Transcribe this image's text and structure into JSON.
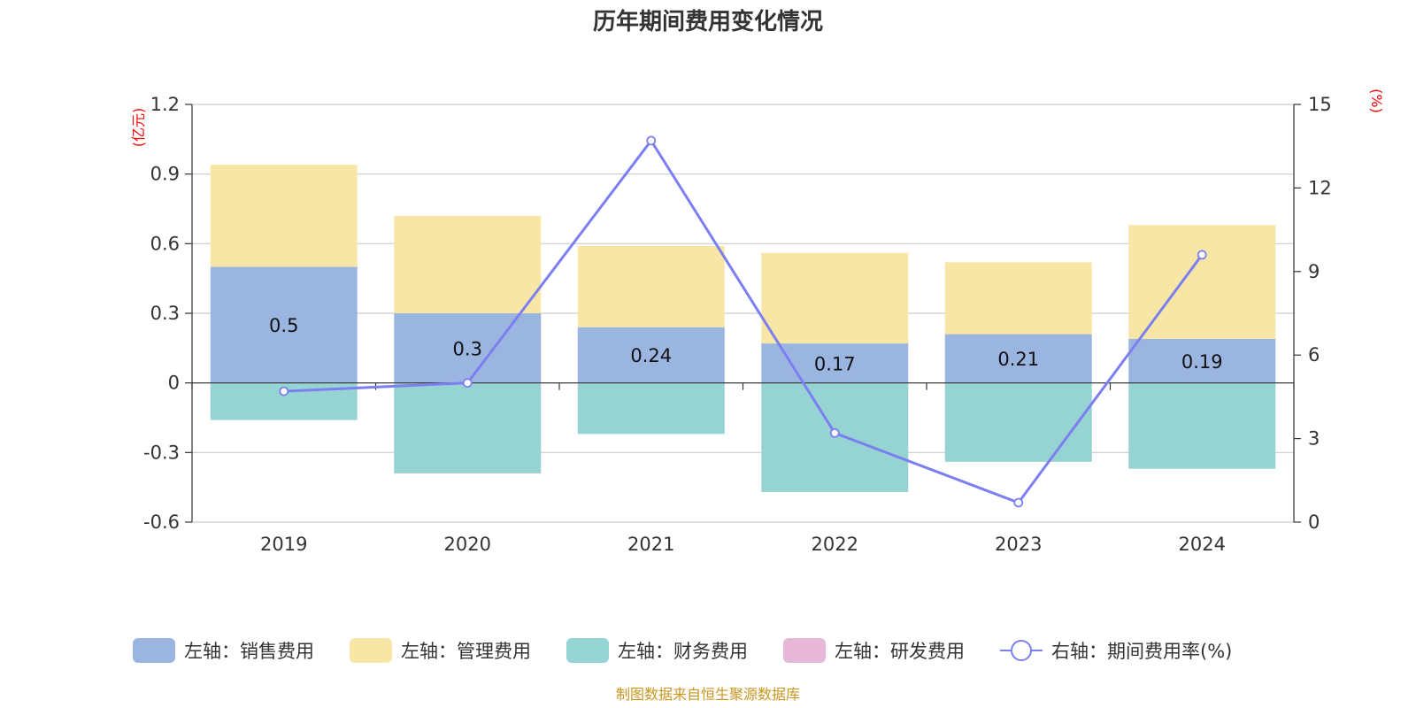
{
  "title": "历年期间费用变化情况",
  "source": "制图数据来自恒生聚源数据库",
  "colors": {
    "sales": "#9bb5e1",
    "admin": "#f8e6a6",
    "finance": "#96d3d3",
    "rnd": "#e8b8d9",
    "rate_line": "#7b7ff0",
    "unit_text": "#ff0000",
    "source_text": "#c8961e"
  },
  "chart_data": {
    "type": "bar",
    "stacked": true,
    "categories": [
      "2019",
      "2020",
      "2021",
      "2022",
      "2023",
      "2024"
    ],
    "left_axis": {
      "unit": "(亿元)",
      "ylim": [
        -0.6,
        1.2
      ],
      "ticks": [
        "-0.6",
        "-0.3",
        "0",
        "0.3",
        "0.6",
        "0.9",
        "1.2"
      ]
    },
    "right_axis": {
      "unit": "(%)",
      "ylim": [
        0,
        15
      ],
      "ticks": [
        "0",
        "3",
        "6",
        "9",
        "12",
        "15"
      ]
    },
    "series": [
      {
        "name": "左轴：销售费用",
        "key": "sales",
        "values": [
          0.5,
          0.3,
          0.24,
          0.17,
          0.21,
          0.19
        ],
        "labels": [
          "0.5",
          "0.3",
          "0.24",
          "0.17",
          "0.21",
          "0.19"
        ]
      },
      {
        "name": "左轴：管理费用",
        "key": "admin",
        "values": [
          0.44,
          0.42,
          0.35,
          0.39,
          0.31,
          0.49
        ]
      },
      {
        "name": "左轴：财务费用",
        "key": "finance",
        "values": [
          -0.16,
          -0.39,
          -0.22,
          -0.47,
          -0.34,
          -0.37
        ]
      },
      {
        "name": "左轴：研发费用",
        "key": "rnd",
        "values": [
          0,
          0,
          0,
          0,
          0,
          0
        ]
      },
      {
        "name": "右轴：期间费用率(%)",
        "key": "rate",
        "type": "line",
        "axis": "right",
        "values": [
          4.7,
          5.0,
          13.7,
          3.2,
          0.7,
          9.6
        ]
      }
    ],
    "grid": true,
    "legend_position": "bottom"
  }
}
